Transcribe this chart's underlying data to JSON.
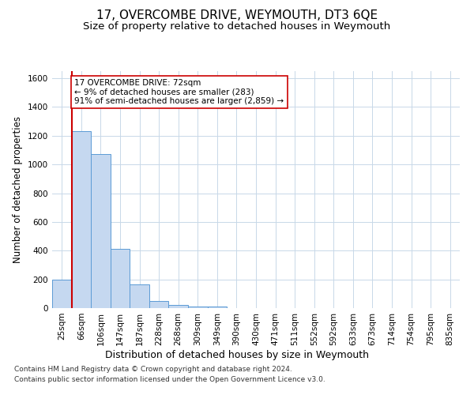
{
  "title": "17, OVERCOMBE DRIVE, WEYMOUTH, DT3 6QE",
  "subtitle": "Size of property relative to detached houses in Weymouth",
  "xlabel": "Distribution of detached houses by size in Weymouth",
  "ylabel": "Number of detached properties",
  "categories": [
    "25sqm",
    "66sqm",
    "106sqm",
    "147sqm",
    "187sqm",
    "228sqm",
    "268sqm",
    "309sqm",
    "349sqm",
    "390sqm",
    "430sqm",
    "471sqm",
    "511sqm",
    "552sqm",
    "592sqm",
    "633sqm",
    "673sqm",
    "714sqm",
    "754sqm",
    "795sqm",
    "835sqm"
  ],
  "values": [
    200,
    1230,
    1070,
    410,
    165,
    50,
    20,
    10,
    10,
    0,
    0,
    0,
    0,
    0,
    0,
    0,
    0,
    0,
    0,
    0,
    0
  ],
  "bar_color": "#c5d8f0",
  "bar_edge_color": "#5b9bd5",
  "vline_x_index": 1,
  "vline_color": "#cc0000",
  "ylim": [
    0,
    1650
  ],
  "yticks": [
    0,
    200,
    400,
    600,
    800,
    1000,
    1200,
    1400,
    1600
  ],
  "annotation_line1": "17 OVERCOMBE DRIVE: 72sqm",
  "annotation_line2": "← 9% of detached houses are smaller (283)",
  "annotation_line3": "91% of semi-detached houses are larger (2,859) →",
  "box_edge_color": "#cc0000",
  "footer_line1": "Contains HM Land Registry data © Crown copyright and database right 2024.",
  "footer_line2": "Contains public sector information licensed under the Open Government Licence v3.0.",
  "background_color": "#ffffff",
  "grid_color": "#c8d8e8",
  "title_fontsize": 11,
  "subtitle_fontsize": 9.5,
  "ylabel_fontsize": 8.5,
  "xlabel_fontsize": 9,
  "tick_fontsize": 7.5,
  "annotation_fontsize": 7.5,
  "footer_fontsize": 6.5
}
